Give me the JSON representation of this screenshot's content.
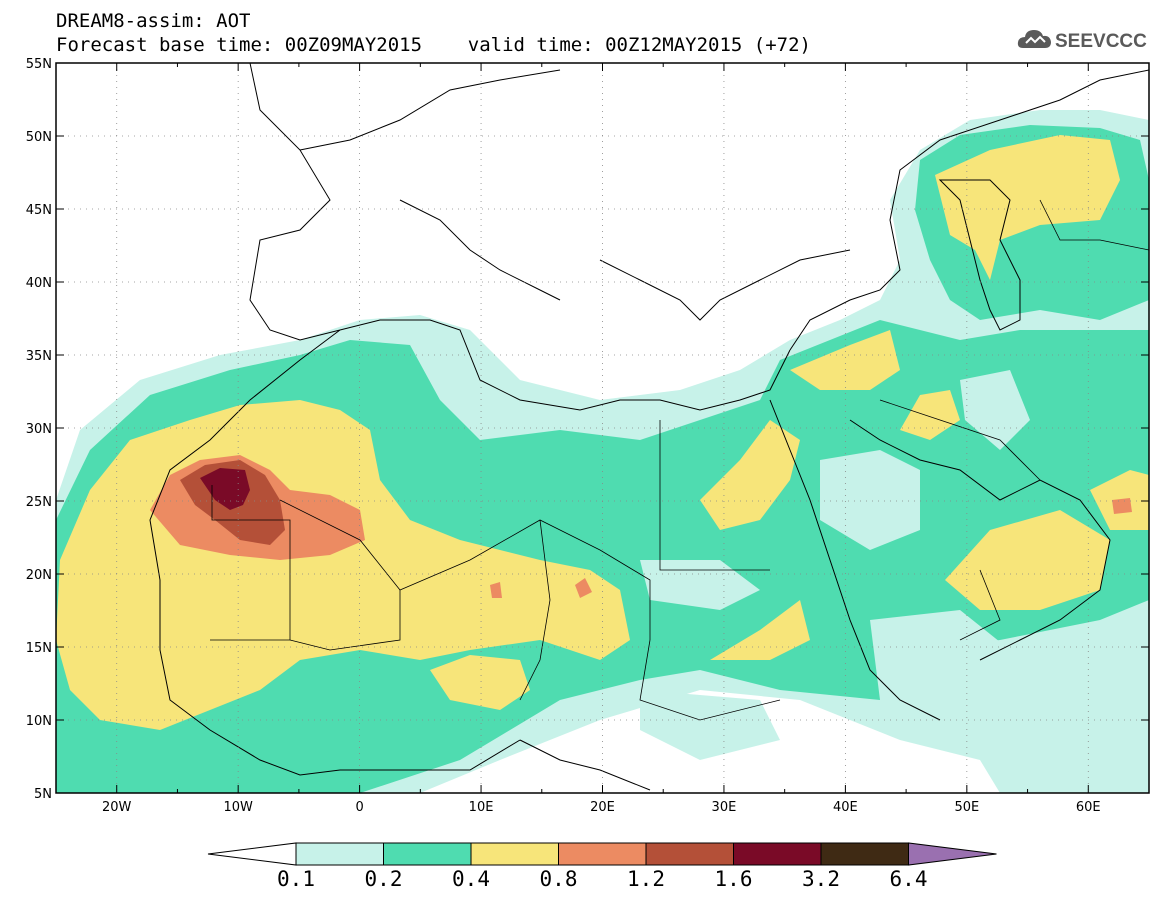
{
  "header": {
    "title_line1": "DREAM8-assim: AOT",
    "title_line2": "Forecast base time: 00Z09MAY2015    valid time: 00Z12MAY2015 (+72)",
    "logo_text": "SEEVCCC",
    "logo_icon": "cloud-icon"
  },
  "map": {
    "lon_range": [
      -25,
      65
    ],
    "lat_range": [
      5,
      55
    ],
    "lat_labels": [
      "55N",
      "50N",
      "45N",
      "40N",
      "35N",
      "30N",
      "25N",
      "20N",
      "15N",
      "10N",
      "5N"
    ],
    "lat_values": [
      55,
      50,
      45,
      40,
      35,
      30,
      25,
      20,
      15,
      10,
      5
    ],
    "lon_labels": [
      "20W",
      "10W",
      "0",
      "10E",
      "20E",
      "30E",
      "40E",
      "50E",
      "60E"
    ],
    "lon_values": [
      -20,
      -10,
      0,
      10,
      20,
      30,
      40,
      50,
      60
    ],
    "grid": "dotted"
  },
  "colorbar": {
    "levels": [
      "0.1",
      "0.2",
      "0.4",
      "0.8",
      "1.2",
      "1.6",
      "3.2",
      "6.4"
    ],
    "colors": [
      "#ffffff",
      "#c7f2e9",
      "#4fdcb0",
      "#f7e57a",
      "#ec8b62",
      "#b45038",
      "#7a0a27",
      "#3f2a14",
      "#9a70b0"
    ]
  }
}
